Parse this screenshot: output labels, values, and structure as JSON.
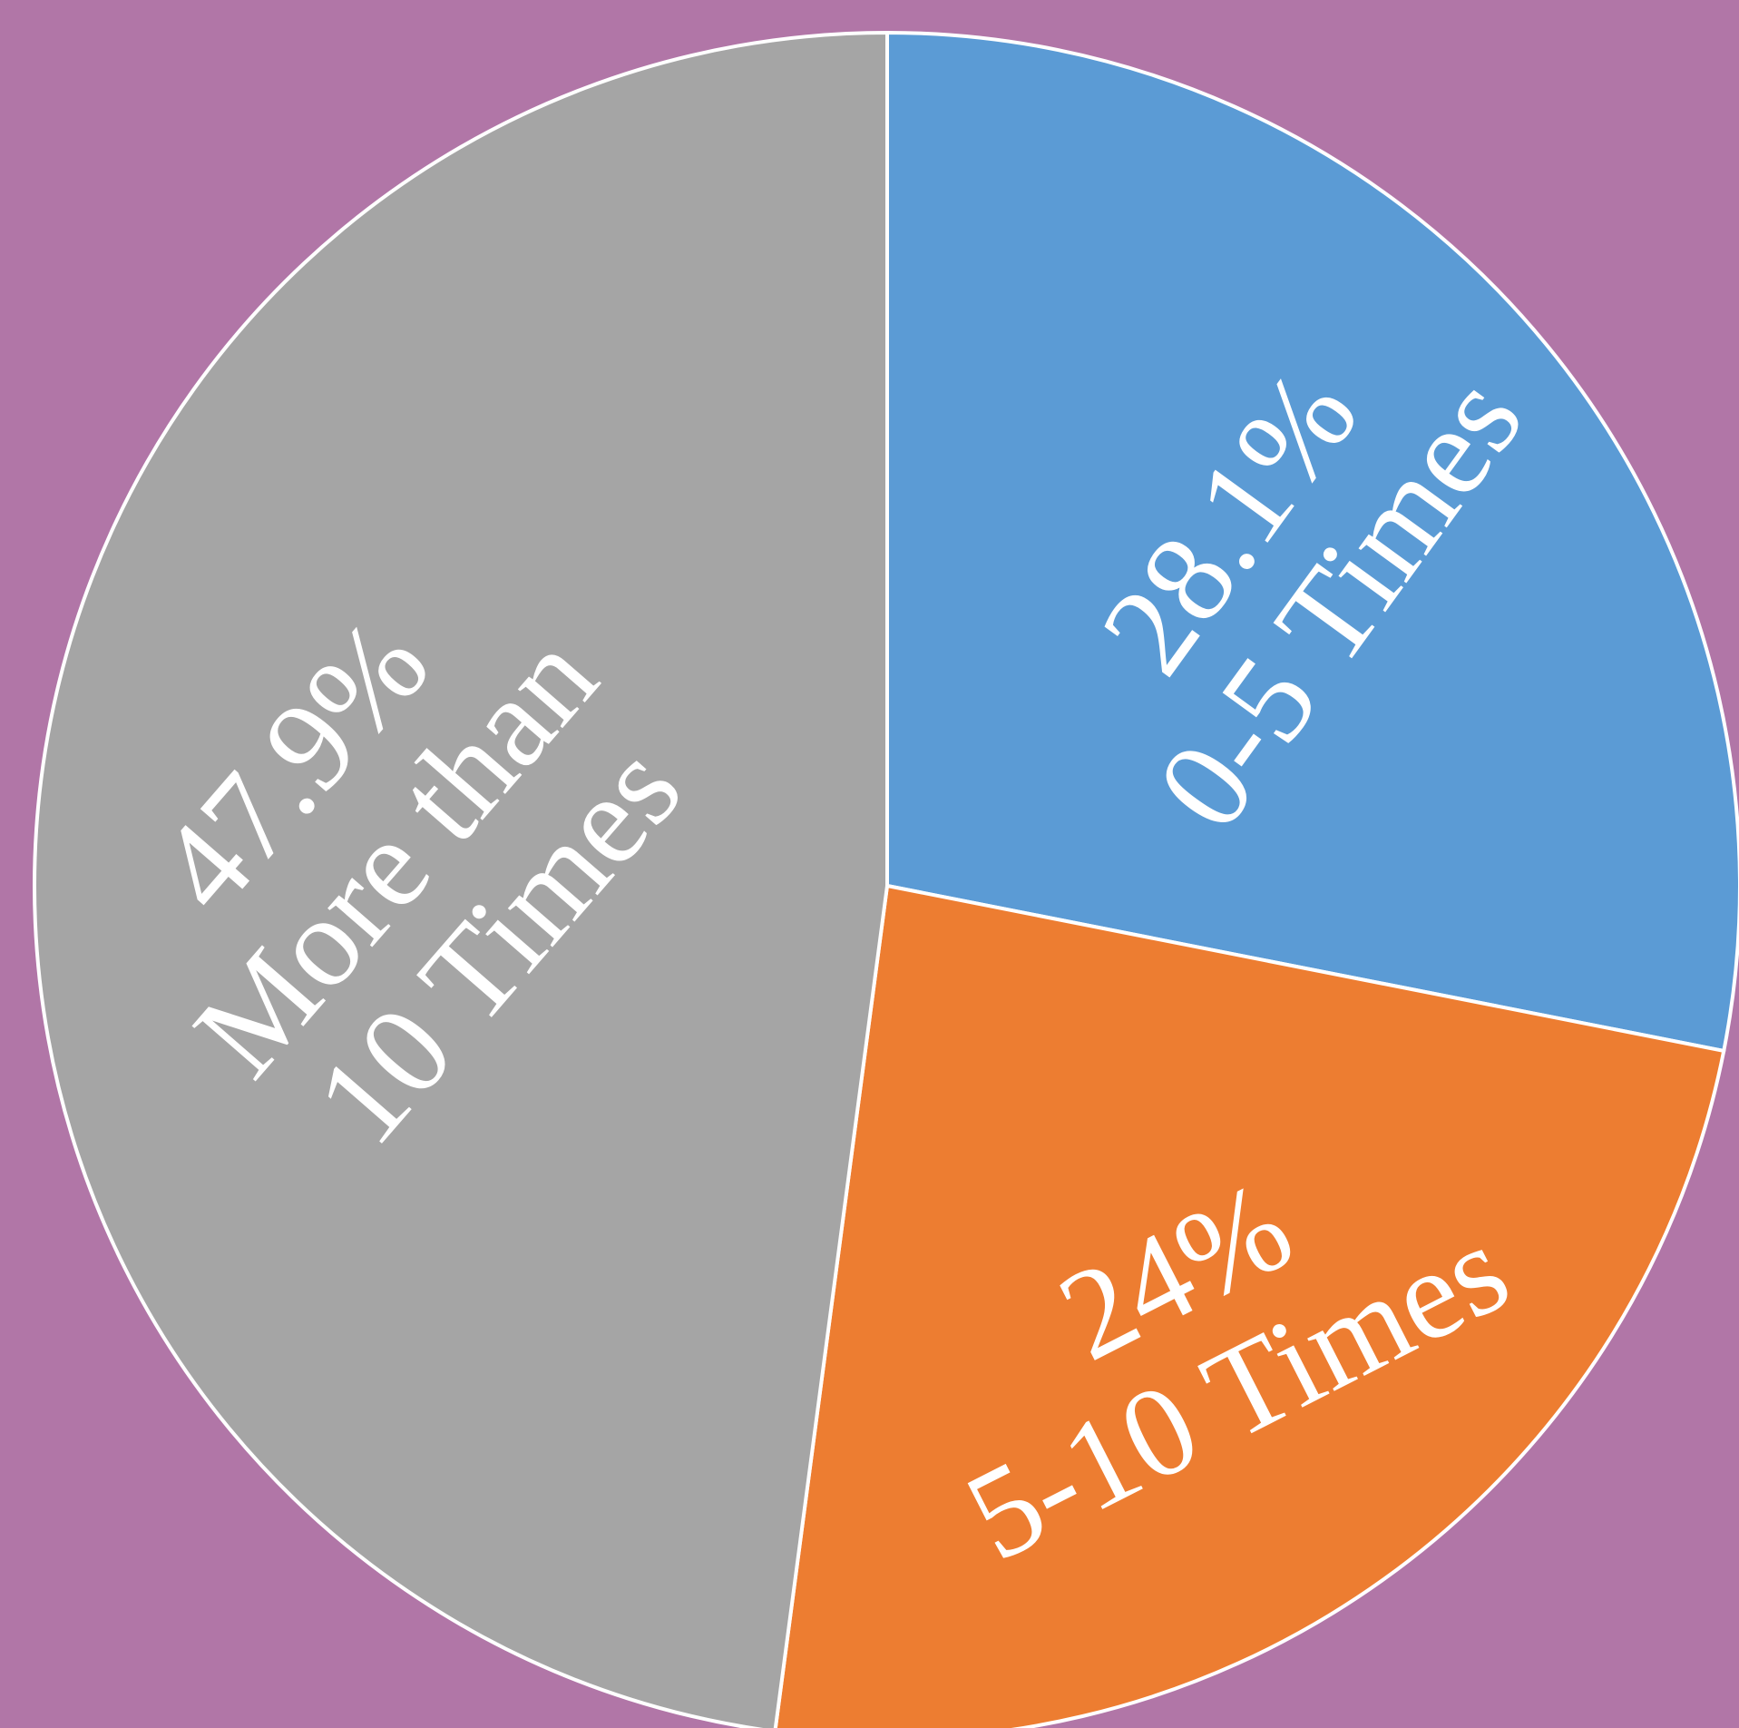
{
  "chart_data": {
    "type": "pie",
    "title": "",
    "start_angle_deg": 0,
    "direction": "clockwise",
    "slices": [
      {
        "label": "0-5 Times",
        "value": 28.1,
        "value_label": "28.1%",
        "color": "#5b9bd5"
      },
      {
        "label": "5-10 Times",
        "value": 24.0,
        "value_label": "24%",
        "color": "#ed7d31"
      },
      {
        "label": "More than 10 Times",
        "value": 47.9,
        "value_label": "47.9%",
        "color": "#a5a5a5"
      }
    ]
  },
  "colors": {
    "background": "#b176a7",
    "slice_border": "#ffffff",
    "label_text": "#ffffff"
  }
}
